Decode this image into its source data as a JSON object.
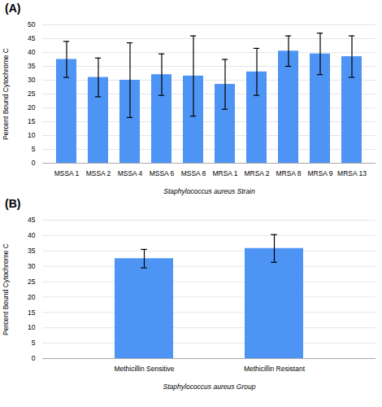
{
  "chart_data": [
    {
      "type": "bar",
      "title": "(A)",
      "xlabel": "Staphylococcus aureus Strain",
      "ylabel": "Percent Bound Cytochrome C",
      "categories": [
        "MSSA 1",
        "MSSA 2",
        "MSSA 4",
        "MSSA 6",
        "MSSA 8",
        "MRSA 1",
        "MRSA 2",
        "MRSA 8",
        "MRSA 9",
        "MRSA 13"
      ],
      "values": [
        37.5,
        31.0,
        30.0,
        32.0,
        31.5,
        28.5,
        33.0,
        40.5,
        39.5,
        38.5
      ],
      "errors": [
        6.5,
        7.0,
        13.5,
        7.5,
        14.5,
        9.0,
        8.5,
        5.5,
        7.5,
        7.5
      ],
      "ylim": [
        0,
        50
      ],
      "yticks": [
        0,
        5,
        10,
        15,
        20,
        25,
        30,
        35,
        40,
        45,
        50
      ],
      "grid": true,
      "color": "#4d94f5"
    },
    {
      "type": "bar",
      "title": "(B)",
      "xlabel": "Staphylococcus aureus Group",
      "ylabel": "Percent Bound Cytochrome C",
      "categories": [
        "Methicillin Sensitive",
        "Methicillin Resistant"
      ],
      "values": [
        32.5,
        35.8
      ],
      "errors": [
        3.0,
        4.5
      ],
      "ylim": [
        0,
        45
      ],
      "yticks": [
        0,
        5,
        10,
        15,
        20,
        25,
        30,
        35,
        40,
        45
      ],
      "grid": true,
      "color": "#4d94f5"
    }
  ]
}
